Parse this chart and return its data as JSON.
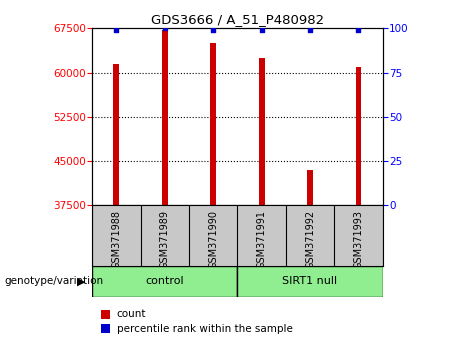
{
  "title": "GDS3666 / A_51_P480982",
  "samples": [
    "GSM371988",
    "GSM371989",
    "GSM371990",
    "GSM371991",
    "GSM371992",
    "GSM371993"
  ],
  "counts": [
    61500,
    67200,
    65000,
    62500,
    43500,
    61000
  ],
  "percentile_ranks": [
    99,
    100,
    99,
    99,
    99,
    99
  ],
  "ylim_left": [
    37500,
    67500
  ],
  "yticks_left": [
    37500,
    45000,
    52500,
    60000,
    67500
  ],
  "ylim_right": [
    0,
    100
  ],
  "yticks_right": [
    0,
    25,
    50,
    75,
    100
  ],
  "bar_color": "#cc0000",
  "dot_color": "#0000cc",
  "group_labels": [
    "control",
    "SIRT1 null"
  ],
  "group_ranges": [
    [
      0,
      3
    ],
    [
      3,
      6
    ]
  ],
  "group_color": "#90ee90",
  "legend_count_color": "#cc0000",
  "legend_pct_color": "#0000cc",
  "xlabel_area_color": "#c8c8c8",
  "genotype_label": "genotype/variation",
  "bar_width": 0.12
}
